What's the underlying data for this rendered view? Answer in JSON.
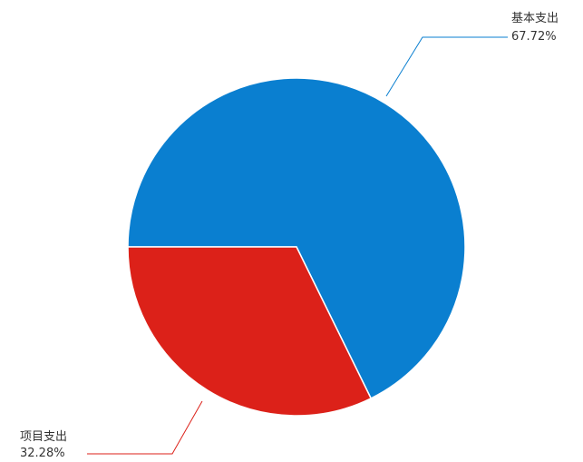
{
  "chart_data": {
    "type": "pie",
    "slices": [
      {
        "name": "基本支出",
        "value": 67.72,
        "label": "67.72%",
        "color": "#0a7fd0"
      },
      {
        "name": "项目支出",
        "value": 32.28,
        "label": "32.28%",
        "color": "#dc2119"
      }
    ],
    "start_angle_deg": 180,
    "direction": "clockwise"
  }
}
